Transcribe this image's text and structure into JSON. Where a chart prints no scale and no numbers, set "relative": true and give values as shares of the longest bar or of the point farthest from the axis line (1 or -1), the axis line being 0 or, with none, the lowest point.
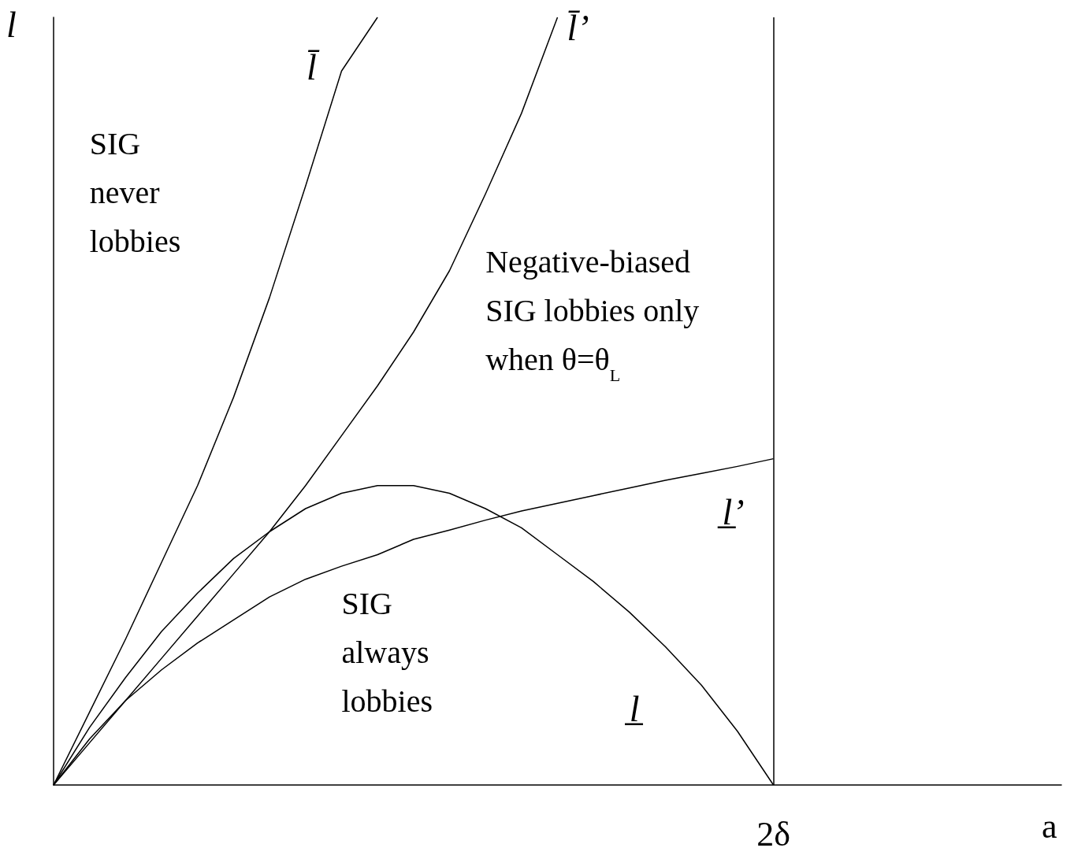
{
  "chart_data": {
    "type": "line",
    "relative": true,
    "xlabel": "a",
    "ylabel": "l",
    "categories": [
      null,
      null,
      null,
      null,
      null,
      null,
      null,
      null,
      null,
      null,
      null,
      null,
      null,
      null,
      null,
      null,
      null,
      null,
      null,
      null,
      null,
      null,
      null,
      null,
      null,
      null,
      null,
      null,
      null
    ],
    "series": [
      {
        "name": "l̄",
        "color": "#000000",
        "values": [
          0,
          0.095,
          0.19,
          0.29,
          0.39,
          0.505,
          0.635,
          0.78,
          0.93,
          1.0,
          null,
          null,
          null,
          null,
          null,
          null,
          null,
          null,
          null,
          null,
          null,
          null,
          null,
          null,
          null,
          null,
          null,
          null,
          null
        ]
      },
      {
        "name": "l̄’",
        "color": "#000000",
        "values": [
          0,
          0.055,
          0.11,
          0.165,
          0.22,
          0.275,
          0.33,
          0.39,
          0.455,
          0.52,
          0.59,
          0.67,
          0.77,
          0.875,
          1.0,
          null,
          null,
          null,
          null,
          null,
          null,
          null,
          null,
          null,
          null,
          null,
          null,
          null,
          null
        ]
      },
      {
        "name": "l̲’",
        "color": "#000000",
        "values": [
          0,
          0.06,
          0.11,
          0.15,
          0.185,
          0.215,
          0.245,
          0.268,
          0.285,
          0.3,
          0.32,
          0.332,
          0.345,
          0.357,
          0.367,
          0.377,
          0.387,
          0.397,
          0.406,
          0.415,
          0.425,
          null,
          null,
          null,
          null,
          null,
          null,
          null,
          null
        ]
      },
      {
        "name": "l̲",
        "color": "#000000",
        "values": [
          0,
          0.075,
          0.14,
          0.2,
          0.25,
          0.295,
          0.33,
          0.36,
          0.38,
          0.39,
          0.39,
          0.38,
          0.36,
          0.335,
          0.3,
          0.265,
          0.225,
          0.18,
          0.13,
          0.07,
          0,
          null,
          null,
          null,
          null,
          null,
          null,
          null,
          null
        ]
      }
    ],
    "ref_lines": [
      {
        "axis": "x",
        "label": "2δ",
        "color": "#000000"
      }
    ],
    "annotations": [
      "SIG\nnever\nlobbies",
      "Negative-biased\nSIG lobbies only\nwhen θ=θ$_{L}$",
      "SIG\nalways\nlobbies"
    ],
    "grid": false,
    "legend": false,
    "marker": "none",
    "line_style": "solid"
  }
}
